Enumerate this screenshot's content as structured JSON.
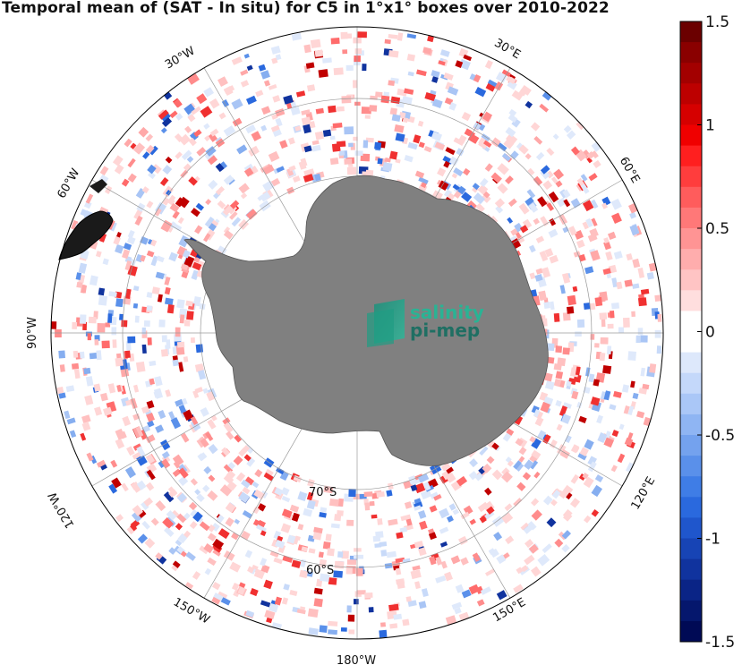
{
  "title": "Temporal mean of (SAT - In situ) for C5 in 1°x1° boxes over 2010-2022",
  "map": {
    "projection": "south polar stereographic",
    "longitude_labels": [
      {
        "text": "30°W"
      },
      {
        "text": "30°E"
      },
      {
        "text": "60°W"
      },
      {
        "text": "60°E"
      },
      {
        "text": "90°W"
      },
      {
        "text": "120°W"
      },
      {
        "text": "120°E"
      },
      {
        "text": "150°W"
      },
      {
        "text": "150°E"
      },
      {
        "text": "180°W"
      }
    ],
    "latitude_labels": [
      {
        "text": "70°S"
      },
      {
        "text": "60°S"
      }
    ],
    "land_color": "#808080",
    "logo": {
      "line1": "salinity",
      "line2": "pi-mep"
    }
  },
  "colorbar": {
    "min": -1.5,
    "max": 1.5,
    "ticks": [
      {
        "value": 1.5,
        "label": "1.5"
      },
      {
        "value": 1,
        "label": "1"
      },
      {
        "value": 0.5,
        "label": "0.5"
      },
      {
        "value": 0,
        "label": "0"
      },
      {
        "value": -0.5,
        "label": "-0.5"
      },
      {
        "value": -1,
        "label": "-1"
      },
      {
        "value": -1.5,
        "label": "-1.5"
      }
    ],
    "colors_top_to_bottom": [
      "#6b0000",
      "#8a0000",
      "#a30000",
      "#bd0000",
      "#d60000",
      "#f00000",
      "#ff1f1f",
      "#ff3d3d",
      "#ff5c5c",
      "#ff7878",
      "#ff9494",
      "#ffadad",
      "#ffc4c4",
      "#ffdede",
      "#ffffff",
      "#ffffff",
      "#dde8fb",
      "#c4d8fa",
      "#aac7f7",
      "#8fb5f3",
      "#74a2ee",
      "#5a90ea",
      "#3f7de6",
      "#2a69de",
      "#1f56cc",
      "#1744b5",
      "#10339e",
      "#0a2486",
      "#05176d",
      "#000a55"
    ]
  }
}
